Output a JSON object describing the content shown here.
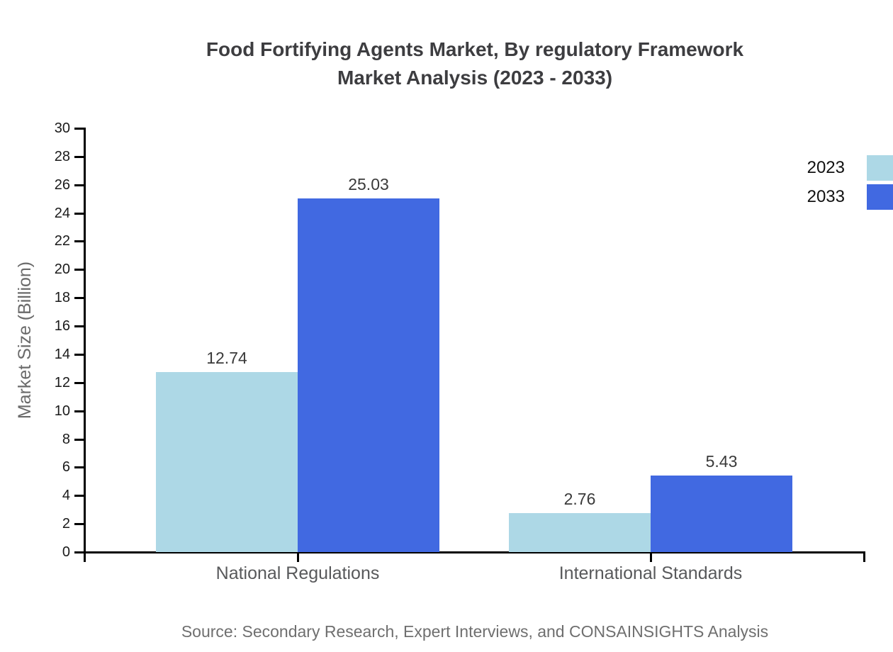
{
  "title": {
    "line1": "Food Fortifying Agents Market, By regulatory Framework",
    "line2": "Market Analysis (2023 - 2033)"
  },
  "source": "Source: Secondary Research, Expert Interviews, and CONSAINSIGHTS Analysis",
  "chart_data": {
    "type": "bar",
    "categories": [
      "National Regulations",
      "International Standards"
    ],
    "series": [
      {
        "name": "2023",
        "color": "#add8e6",
        "values": [
          12.74,
          2.76
        ]
      },
      {
        "name": "2033",
        "color": "#4169e1",
        "values": [
          25.03,
          5.43
        ]
      }
    ],
    "title": "Food Fortifying Agents Market, By regulatory Framework Market Analysis (2023 - 2033)",
    "xlabel": "",
    "ylabel": "Market Size (Billion)",
    "ylim": [
      0,
      30
    ],
    "ytick_step": 2,
    "grid": false,
    "legend_position": "outside-top-right",
    "axis_color": "#000000",
    "background": "#ffffff"
  }
}
